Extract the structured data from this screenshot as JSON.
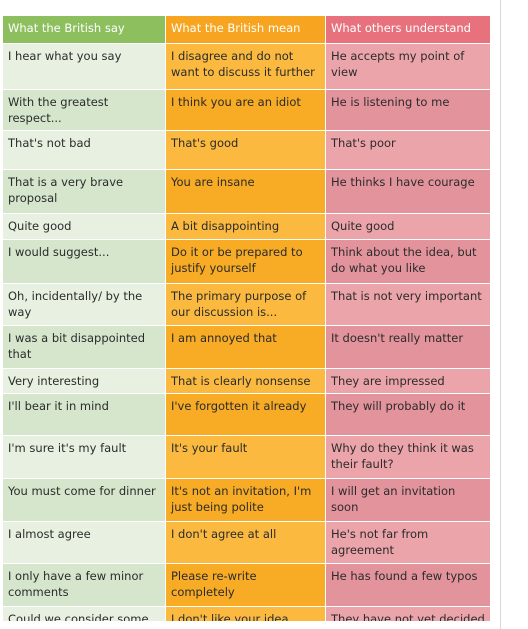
{
  "table": {
    "header": [
      "What the British say",
      "What the British mean",
      "What others understand"
    ],
    "rows": [
      [
        "I hear what you say",
        "I disagree and do not want to discuss it further",
        "He accepts my point of view"
      ],
      [
        "With the greatest respect...",
        "I think you are an idiot",
        "He is listening to me"
      ],
      [
        "That's not bad",
        "That's good",
        "That's poor"
      ],
      [
        "That is a very brave proposal",
        "You are insane",
        "He thinks I have courage"
      ],
      [
        "Quite good",
        "A bit disappointing",
        "Quite good"
      ],
      [
        "I would suggest...",
        "Do it or be prepared to justify yourself",
        "Think about the idea, but do what you like"
      ],
      [
        "Oh, incidentally/ by the way",
        "The primary purpose of our discussion is...",
        "That is not very important"
      ],
      [
        "I was a bit disappointed that",
        "I am annoyed that",
        "It doesn't really matter"
      ],
      [
        "Very interesting",
        "That is clearly nonsense",
        "They are impressed"
      ],
      [
        "I'll bear it in mind",
        "I've forgotten it already",
        "They will probably do it"
      ],
      [
        "I'm sure it's my fault",
        "It's your fault",
        "Why do they think it was their fault?"
      ],
      [
        "You must come for dinner",
        "It's not an invitation, I'm just being polite",
        "I will get an invitation soon"
      ],
      [
        "I almost agree",
        "I don't agree at all",
        "He's not far from agreement"
      ],
      [
        "I only have a few minor comments",
        "Please re-write completely",
        "He has found a few typos"
      ],
      [
        "Could we consider some",
        "I don't like your idea",
        "They have not yet decided"
      ]
    ]
  }
}
